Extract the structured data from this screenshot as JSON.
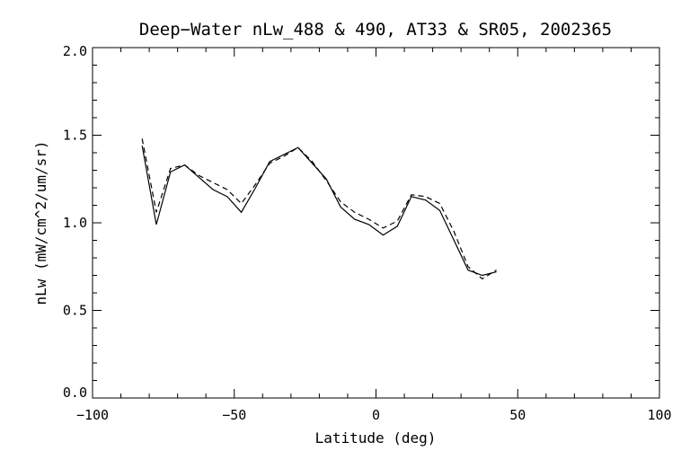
{
  "chart_data": {
    "type": "line",
    "title": "Deep−Water nLw_488 & 490, AT33 & SR05, 2002365",
    "xlabel": "Latitude (deg)",
    "ylabel": "nLw (mW/cm^2/um/sr)",
    "xlim": [
      -100,
      100
    ],
    "ylim": [
      0.0,
      2.0
    ],
    "xticks": [
      -100,
      -50,
      0,
      50,
      100
    ],
    "xtick_labels": [
      "−100",
      "−50",
      "0",
      "50",
      "100"
    ],
    "yticks": [
      0.0,
      0.5,
      1.0,
      1.5,
      2.0
    ],
    "ytick_labels": [
      "0.0",
      "0.5",
      "1.0",
      "1.5",
      "2.0"
    ],
    "grid": false,
    "series": [
      {
        "line_style": "solid",
        "color": "#000000",
        "x": [
          -82.5,
          -77.5,
          -72.5,
          -67.5,
          -62.5,
          -57.5,
          -52.5,
          -47.5,
          -42.5,
          -37.5,
          -32.5,
          -27.5,
          -22.5,
          -17.5,
          -12.5,
          -7.5,
          -2.5,
          2.5,
          7.5,
          12.5,
          17.5,
          22.5,
          27.5,
          32.5,
          37.5,
          42.5
        ],
        "y": [
          1.44,
          0.99,
          1.29,
          1.33,
          1.26,
          1.19,
          1.15,
          1.06,
          1.2,
          1.35,
          1.39,
          1.43,
          1.34,
          1.25,
          1.09,
          1.02,
          0.99,
          0.93,
          0.98,
          1.15,
          1.13,
          1.07,
          0.9,
          0.73,
          0.7,
          0.72
        ]
      },
      {
        "line_style": "dashed",
        "color": "#000000",
        "x": [
          -82.5,
          -77.5,
          -72.5,
          -67.5,
          -62.5,
          -57.5,
          -52.5,
          -47.5,
          -42.5,
          -37.5,
          -32.5,
          -27.5,
          -22.5,
          -17.5,
          -12.5,
          -7.5,
          -2.5,
          2.5,
          7.5,
          12.5,
          17.5,
          22.5,
          27.5,
          32.5,
          37.5,
          42.5
        ],
        "y": [
          1.48,
          1.06,
          1.31,
          1.33,
          1.27,
          1.23,
          1.19,
          1.11,
          1.22,
          1.34,
          1.38,
          1.43,
          1.35,
          1.24,
          1.12,
          1.06,
          1.02,
          0.97,
          1.01,
          1.16,
          1.15,
          1.11,
          0.95,
          0.75,
          0.68,
          0.73
        ]
      }
    ]
  }
}
